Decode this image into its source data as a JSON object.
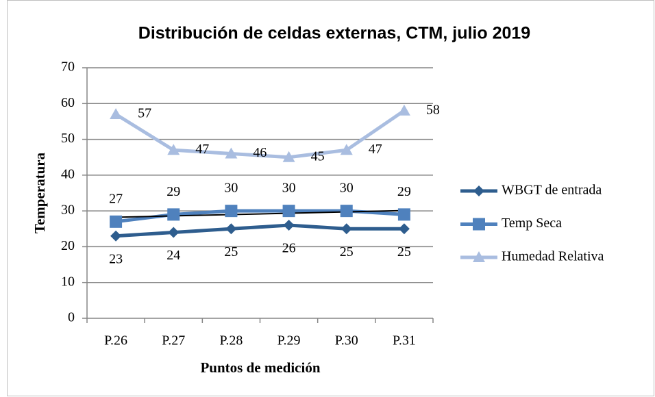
{
  "chart_data": {
    "type": "line",
    "title": "Distribución de celdas externas, CTM, julio 2019",
    "x_label": "Puntos de medición",
    "y_label": "Temperatura",
    "categories": [
      "P.26",
      "P.27",
      "P.28",
      "P.29",
      "P.30",
      "P.31"
    ],
    "series": [
      {
        "name": "WBGT de entrada",
        "color": "#2e5d8e",
        "marker": "diamond",
        "values": [
          23,
          24,
          25,
          26,
          25,
          25
        ]
      },
      {
        "name": "Temp Seca",
        "color": "#4f81bd",
        "marker": "square",
        "values": [
          27,
          29,
          30,
          30,
          30,
          29
        ]
      },
      {
        "name": "Humedad Relativa",
        "color": "#a9bde0",
        "marker": "triangle",
        "values": [
          57,
          47,
          46,
          45,
          47,
          58
        ]
      }
    ],
    "ylim": [
      0,
      70
    ],
    "yticks": [
      0,
      10,
      20,
      30,
      40,
      50,
      60,
      70
    ],
    "grid": true,
    "legend": "right"
  }
}
